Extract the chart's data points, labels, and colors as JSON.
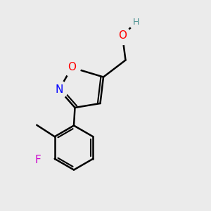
{
  "bg_color": "#ebebeb",
  "bond_color": "#000000",
  "bond_width": 1.8,
  "atom_colors": {
    "O_red": "#ff0000",
    "N_blue": "#0000ff",
    "F_magenta": "#cc00cc",
    "H_teal": "#4a9090",
    "C_black": "#000000"
  },
  "font_size_atom": 11,
  "font_size_H": 9,
  "figsize": [
    3.0,
    3.0
  ],
  "dpi": 100,
  "xlim": [
    0,
    10
  ],
  "ylim": [
    0,
    10
  ]
}
